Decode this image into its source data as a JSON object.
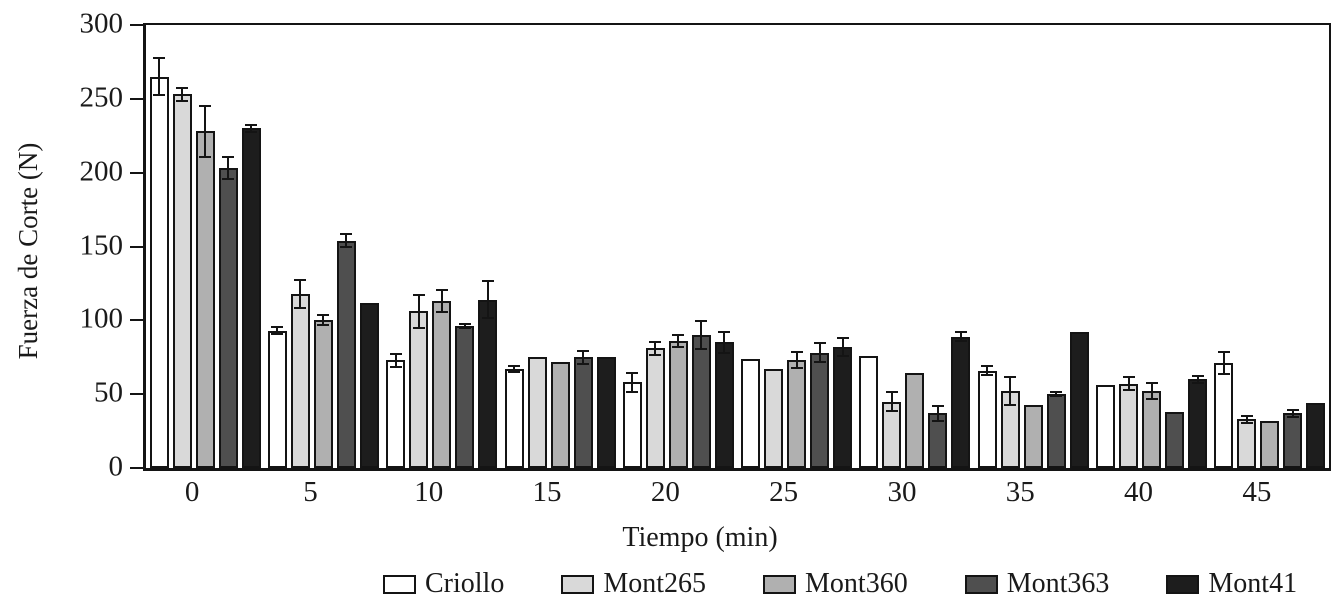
{
  "chart_data": {
    "type": "bar",
    "title": "",
    "xlabel": "Tiempo (min)",
    "ylabel": "Fuerza de Corte (N)",
    "categories": [
      "0",
      "5",
      "10",
      "15",
      "20",
      "25",
      "30",
      "35",
      "40",
      "45"
    ],
    "ylim": [
      0,
      300
    ],
    "yticks": [
      0,
      50,
      100,
      150,
      200,
      250,
      300
    ],
    "grid": false,
    "legend_position": "bottom",
    "error_bars": true,
    "axis_color": "#141414",
    "series": [
      {
        "name": "Criollo",
        "color": "#ffffff",
        "values": [
          265,
          93,
          73,
          67,
          58,
          74,
          76,
          66,
          56,
          71
        ],
        "errors": [
          13,
          3,
          5,
          3,
          7,
          null,
          null,
          4,
          null,
          8
        ]
      },
      {
        "name": "Mont265",
        "color": "#d9d9d9",
        "values": [
          253,
          118,
          106,
          75,
          81,
          67,
          45,
          52,
          57,
          33
        ],
        "errors": [
          5,
          10,
          12,
          null,
          5,
          null,
          7,
          10,
          5,
          3
        ]
      },
      {
        "name": "Mont360",
        "color": "#b0b0b0",
        "values": [
          228,
          100,
          113,
          72,
          86,
          73,
          64,
          43,
          52,
          32
        ],
        "errors": [
          18,
          4,
          8,
          null,
          5,
          6,
          null,
          null,
          6,
          null
        ]
      },
      {
        "name": "Mont363",
        "color": "#4f4f4f",
        "values": [
          203,
          154,
          96,
          75,
          90,
          78,
          37,
          50,
          38,
          37
        ],
        "errors": [
          8,
          5,
          2,
          5,
          10,
          7,
          6,
          2,
          null,
          3
        ]
      },
      {
        "name": "Mont41",
        "color": "#1d1d1d",
        "values": [
          230,
          112,
          114,
          75,
          85,
          82,
          89,
          92,
          60,
          44
        ],
        "errors": [
          3,
          null,
          13,
          null,
          8,
          7,
          4,
          null,
          3,
          null
        ]
      }
    ]
  }
}
